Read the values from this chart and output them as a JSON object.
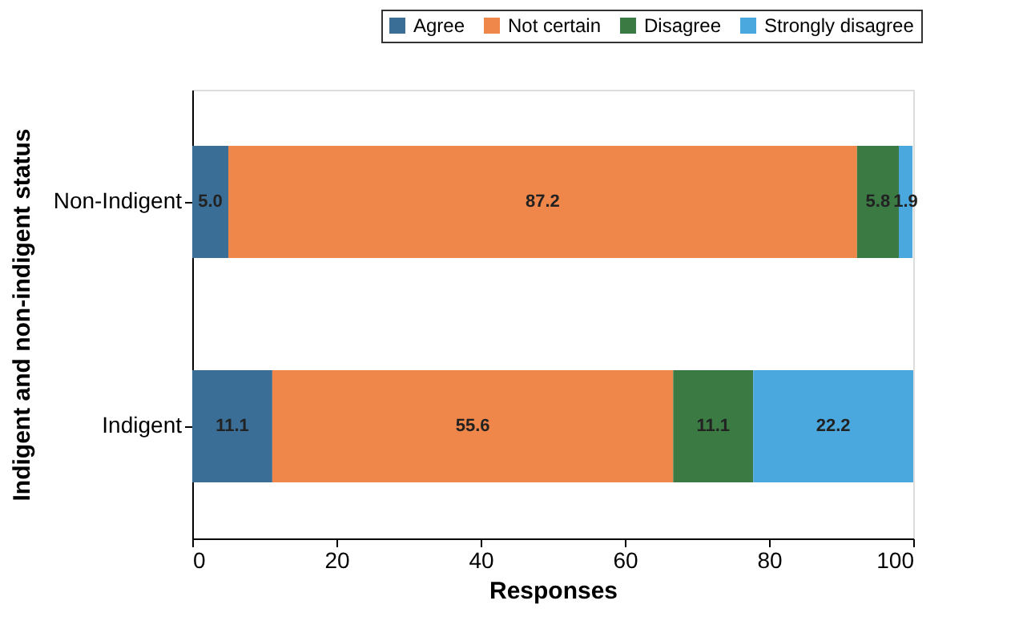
{
  "chart_data": {
    "type": "bar",
    "orientation": "horizontal",
    "stacked": true,
    "xlabel": "Responses",
    "ylabel": "Indigent and non-indigent status",
    "categories": [
      "Non-Indigent",
      "Indigent"
    ],
    "series": [
      {
        "name": "Agree",
        "color": "#3b6e96",
        "values": [
          5.0,
          11.1
        ],
        "value_labels": [
          "5.0",
          "11.1"
        ]
      },
      {
        "name": "Not certain",
        "color": "#f0874a",
        "values": [
          87.2,
          55.6
        ],
        "value_labels": [
          "87.2",
          "55.6"
        ]
      },
      {
        "name": "Disagree",
        "color": "#3c7a44",
        "values": [
          5.8,
          11.1
        ],
        "value_labels": [
          "5.8",
          "11.1"
        ]
      },
      {
        "name": "Strongly disagree",
        "color": "#4aa8de",
        "values": [
          1.9,
          22.2
        ],
        "value_labels": [
          "1.9",
          "22.2"
        ]
      }
    ],
    "xlim": [
      0,
      100
    ],
    "xticks": [
      0,
      20,
      40,
      60,
      80,
      100
    ],
    "grid": false,
    "legend": "top right"
  }
}
